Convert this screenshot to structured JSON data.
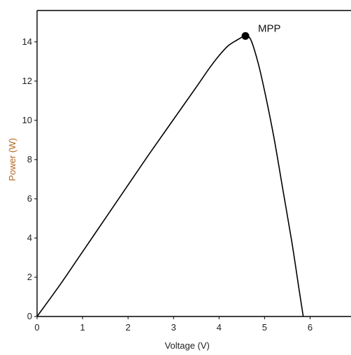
{
  "chart_data": {
    "type": "line",
    "title": "",
    "xlabel": "Voltage (V)",
    "ylabel": "Power (W)",
    "xlim": [
      0,
      6.9
    ],
    "ylim": [
      0,
      15.6
    ],
    "xticks": [
      0,
      1,
      2,
      3,
      4,
      5,
      6
    ],
    "yticks": [
      0,
      2,
      4,
      6,
      8,
      10,
      12,
      14
    ],
    "grid": false,
    "legend": "none",
    "series": [
      {
        "x": [
          0,
          0.5,
          1.0,
          1.5,
          2.0,
          2.5,
          3.0,
          3.5,
          3.8,
          4.0,
          4.2,
          4.4,
          4.58,
          4.7,
          4.85,
          5.0,
          5.2,
          5.4,
          5.6,
          5.75,
          5.85
        ],
        "y": [
          0,
          1.6,
          3.3,
          5.0,
          6.7,
          8.4,
          10.05,
          11.7,
          12.7,
          13.3,
          13.8,
          14.1,
          14.3,
          14.1,
          13.0,
          11.5,
          9.2,
          6.5,
          3.8,
          1.5,
          0
        ]
      }
    ],
    "annotations": [
      {
        "text": "MPP",
        "x": 4.58,
        "y": 14.3
      }
    ],
    "colors": {
      "line": "#000000",
      "ylabel": "#b5651d",
      "axis": "#000000"
    }
  }
}
